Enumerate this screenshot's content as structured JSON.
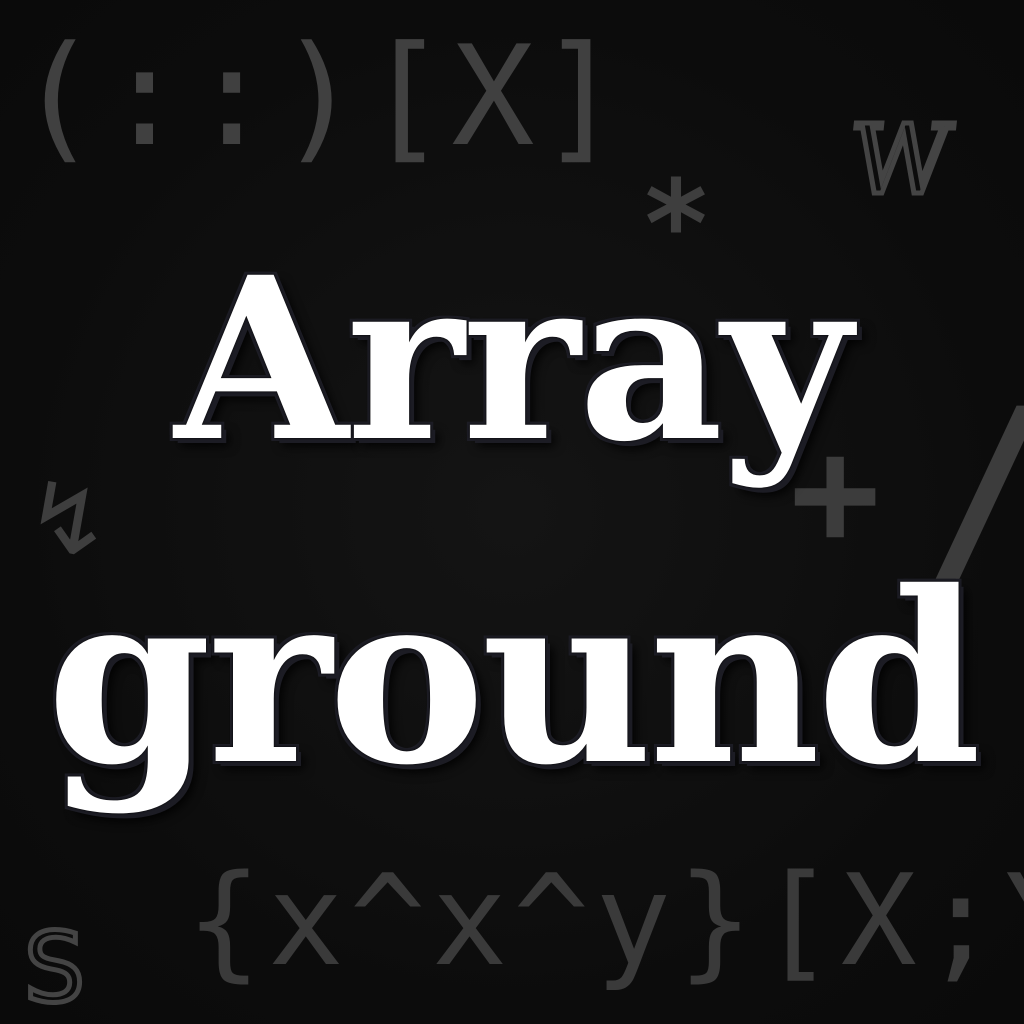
{
  "background": {
    "color": "#0d0d0d",
    "glyph_color": "#404040",
    "glyphs": {
      "top_left": "(::)[X]",
      "top_right_w": "W",
      "asterisk": "*",
      "plus": "+",
      "slash": "/",
      "squiggle": "↯",
      "bottom_row": "{x^x^y}[X;Y",
      "bottom_left_s": "S"
    }
  },
  "title": {
    "line1": "Array",
    "line2": "ground",
    "color": "#ffffff"
  }
}
